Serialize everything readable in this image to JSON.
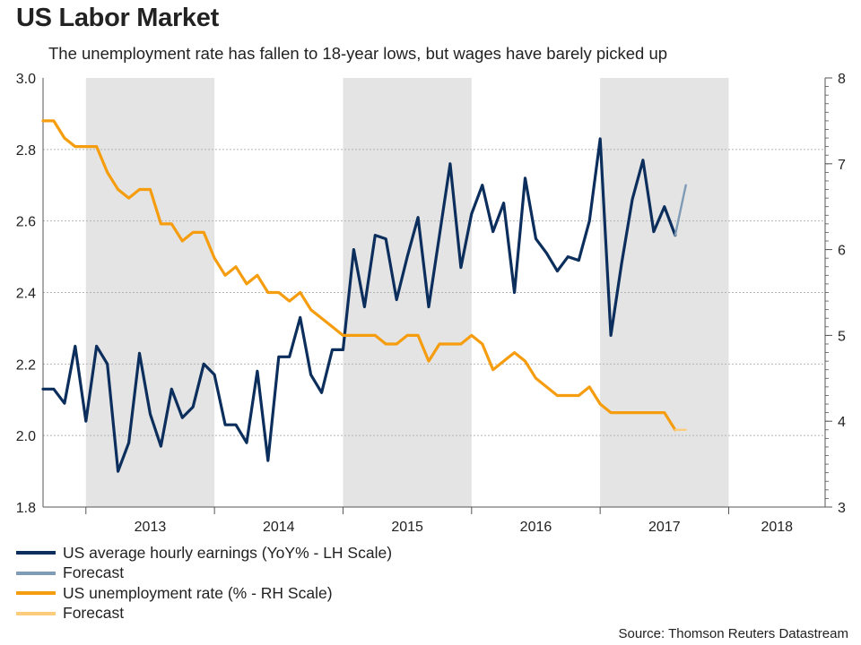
{
  "title": "US Labor Market",
  "subtitle": "The unemployment rate has fallen to 18-year lows, but wages have barely picked up",
  "source": "Source: Thomson Reuters Datastream",
  "colors": {
    "earnings": "#0b2e5c",
    "earnings_forecast": "#7f9bb6",
    "unemployment": "#f59d0e",
    "unemployment_forecast": "#fbcc7c",
    "year_shading": "#e4e4e4",
    "grid": "#b5b5b5",
    "axis": "#555555"
  },
  "legend": [
    {
      "label": "US average hourly earnings (YoY% - LH Scale)",
      "color": "#0b2e5c"
    },
    {
      "label": "Forecast",
      "color": "#7f9bb6"
    },
    {
      "label": "US unemployment rate (% - RH Scale)",
      "color": "#f59d0e"
    },
    {
      "label": "Forecast",
      "color": "#fbcc7c"
    }
  ],
  "chart_data": {
    "type": "line",
    "title": "US Labor Market",
    "x_unit": "month index (0 = Sep 2012)",
    "x_range": [
      0,
      73
    ],
    "years": [
      {
        "label": "2013",
        "start": 4,
        "end": 16,
        "shaded": true
      },
      {
        "label": "2014",
        "start": 16,
        "end": 28,
        "shaded": false
      },
      {
        "label": "2015",
        "start": 28,
        "end": 40,
        "shaded": true
      },
      {
        "label": "2016",
        "start": 40,
        "end": 52,
        "shaded": false
      },
      {
        "label": "2017",
        "start": 52,
        "end": 64,
        "shaded": true
      },
      {
        "label": "2018",
        "start": 64,
        "end": 73,
        "shaded": false
      }
    ],
    "y_left": {
      "label": "YoY%",
      "range": [
        1.8,
        3.0
      ],
      "ticks": [
        "1.8",
        "2.0",
        "2.2",
        "2.4",
        "2.6",
        "2.8",
        "3.0"
      ]
    },
    "y_right": {
      "label": "%",
      "range": [
        3,
        8
      ],
      "ticks": [
        "3",
        "4",
        "5",
        "6",
        "7",
        "8"
      ]
    },
    "grid": "horizontal",
    "legend_position": "bottom-left",
    "series": [
      {
        "name": "US average hourly earnings (YoY% - LH Scale)",
        "axis": "left",
        "x_start": 0,
        "values": [
          2.13,
          2.13,
          2.09,
          2.25,
          2.04,
          2.25,
          2.2,
          1.9,
          1.98,
          2.23,
          2.06,
          1.97,
          2.13,
          2.05,
          2.08,
          2.2,
          2.17,
          2.03,
          2.03,
          1.98,
          2.18,
          1.93,
          2.22,
          2.22,
          2.33,
          2.17,
          2.12,
          2.24,
          2.24,
          2.52,
          2.36,
          2.56,
          2.55,
          2.38,
          2.5,
          2.61,
          2.36,
          2.56,
          2.76,
          2.47,
          2.62,
          2.7,
          2.57,
          2.65,
          2.4,
          2.72,
          2.55,
          2.51,
          2.46,
          2.5,
          2.49,
          2.6,
          2.83,
          2.28,
          2.48,
          2.66,
          2.77,
          2.57,
          2.64,
          2.56
        ]
      },
      {
        "name": "Forecast",
        "axis": "left",
        "x_start": 59,
        "values": [
          2.56,
          2.7
        ]
      },
      {
        "name": "US unemployment rate (% - RH Scale)",
        "axis": "right",
        "x_start": 0,
        "values": [
          7.5,
          7.5,
          7.3,
          7.2,
          7.2,
          7.2,
          6.9,
          6.7,
          6.6,
          6.7,
          6.7,
          6.3,
          6.3,
          6.1,
          6.2,
          6.2,
          5.9,
          5.7,
          5.8,
          5.6,
          5.7,
          5.5,
          5.5,
          5.4,
          5.5,
          5.3,
          5.2,
          5.1,
          5.0,
          5.0,
          5.0,
          5.0,
          4.9,
          4.9,
          5.0,
          5.0,
          4.7,
          4.9,
          4.9,
          4.9,
          5.0,
          4.9,
          4.6,
          4.7,
          4.8,
          4.7,
          4.5,
          4.4,
          4.3,
          4.3,
          4.3,
          4.4,
          4.2,
          4.1,
          4.1,
          4.1,
          4.1,
          4.1,
          4.1,
          3.9
        ]
      },
      {
        "name": "Forecast",
        "axis": "right",
        "x_start": 59,
        "values": [
          3.9,
          3.9
        ]
      }
    ]
  }
}
